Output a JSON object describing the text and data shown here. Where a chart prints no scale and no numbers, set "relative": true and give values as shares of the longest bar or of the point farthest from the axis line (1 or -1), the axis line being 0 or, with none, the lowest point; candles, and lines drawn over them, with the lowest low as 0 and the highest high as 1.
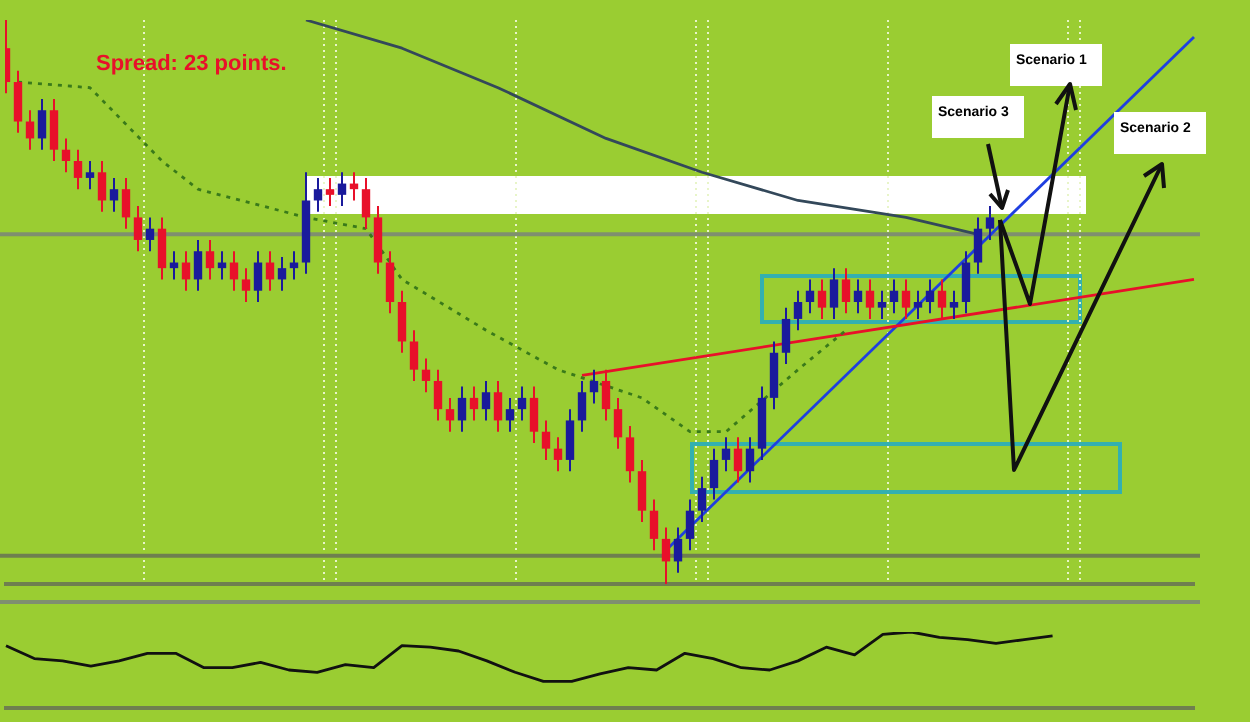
{
  "chart_data": [
    {
      "type": "candlestick",
      "relative": true,
      "grid": "x",
      "categories": [
        null,
        null,
        null,
        null,
        null,
        null,
        null,
        null,
        null,
        null,
        null,
        null,
        null,
        null,
        null,
        null,
        null,
        null,
        null,
        null,
        null,
        null,
        null,
        null,
        null,
        null,
        null,
        null,
        null,
        null,
        null,
        null,
        null,
        null,
        null,
        null,
        null,
        null,
        null,
        null,
        null,
        null,
        null,
        null,
        null,
        null,
        null,
        null,
        null,
        null,
        null,
        null,
        null,
        null,
        null,
        null,
        null,
        null,
        null,
        null,
        null,
        null,
        null,
        null,
        null,
        null,
        null,
        null,
        null,
        null,
        null,
        null,
        null,
        null,
        null,
        null,
        null,
        null,
        null,
        null,
        null,
        null,
        null,
        null,
        null,
        null,
        null,
        null,
        null,
        null,
        null,
        null,
        null,
        null,
        null,
        null,
        null,
        null,
        null,
        null
      ],
      "ohlc": [
        [
          0.95,
          1,
          0.87,
          0.89
        ],
        [
          0.89,
          0.91,
          0.8,
          0.82
        ],
        [
          0.82,
          0.84,
          0.77,
          0.79
        ],
        [
          0.79,
          0.86,
          0.77,
          0.84
        ],
        [
          0.84,
          0.86,
          0.75,
          0.77
        ],
        [
          0.77,
          0.79,
          0.73,
          0.75
        ],
        [
          0.75,
          0.77,
          0.7,
          0.72
        ],
        [
          0.72,
          0.75,
          0.7,
          0.73
        ],
        [
          0.73,
          0.75,
          0.66,
          0.68
        ],
        [
          0.68,
          0.72,
          0.66,
          0.7
        ],
        [
          0.7,
          0.72,
          0.63,
          0.65
        ],
        [
          0.65,
          0.67,
          0.59,
          0.61
        ],
        [
          0.61,
          0.65,
          0.59,
          0.63
        ],
        [
          0.63,
          0.65,
          0.54,
          0.56
        ],
        [
          0.56,
          0.59,
          0.54,
          0.57
        ],
        [
          0.57,
          0.59,
          0.52,
          0.54
        ],
        [
          0.54,
          0.61,
          0.52,
          0.59
        ],
        [
          0.59,
          0.61,
          0.54,
          0.56
        ],
        [
          0.56,
          0.59,
          0.54,
          0.57
        ],
        [
          0.57,
          0.59,
          0.52,
          0.54
        ],
        [
          0.54,
          0.56,
          0.5,
          0.52
        ],
        [
          0.52,
          0.59,
          0.5,
          0.57
        ],
        [
          0.57,
          0.59,
          0.52,
          0.54
        ],
        [
          0.54,
          0.58,
          0.52,
          0.56
        ],
        [
          0.56,
          0.59,
          0.54,
          0.57
        ],
        [
          0.57,
          0.73,
          0.55,
          0.68
        ],
        [
          0.68,
          0.72,
          0.66,
          0.7
        ],
        [
          0.7,
          0.72,
          0.67,
          0.69
        ],
        [
          0.69,
          0.73,
          0.67,
          0.71
        ],
        [
          0.71,
          0.73,
          0.68,
          0.7
        ],
        [
          0.7,
          0.72,
          0.63,
          0.65
        ],
        [
          0.65,
          0.67,
          0.55,
          0.57
        ],
        [
          0.57,
          0.59,
          0.48,
          0.5
        ],
        [
          0.5,
          0.52,
          0.41,
          0.43
        ],
        [
          0.43,
          0.45,
          0.36,
          0.38
        ],
        [
          0.38,
          0.4,
          0.34,
          0.36
        ],
        [
          0.36,
          0.38,
          0.29,
          0.31
        ],
        [
          0.31,
          0.33,
          0.27,
          0.29
        ],
        [
          0.29,
          0.35,
          0.27,
          0.33
        ],
        [
          0.33,
          0.35,
          0.29,
          0.31
        ],
        [
          0.31,
          0.36,
          0.29,
          0.34
        ],
        [
          0.34,
          0.36,
          0.27,
          0.29
        ],
        [
          0.29,
          0.33,
          0.27,
          0.31
        ],
        [
          0.31,
          0.35,
          0.29,
          0.33
        ],
        [
          0.33,
          0.35,
          0.25,
          0.27
        ],
        [
          0.27,
          0.29,
          0.22,
          0.24
        ],
        [
          0.24,
          0.26,
          0.2,
          0.22
        ],
        [
          0.22,
          0.31,
          0.2,
          0.29
        ],
        [
          0.29,
          0.36,
          0.27,
          0.34
        ],
        [
          0.34,
          0.38,
          0.32,
          0.36
        ],
        [
          0.36,
          0.38,
          0.29,
          0.31
        ],
        [
          0.31,
          0.33,
          0.24,
          0.26
        ],
        [
          0.26,
          0.28,
          0.18,
          0.2
        ],
        [
          0.2,
          0.22,
          0.11,
          0.13
        ],
        [
          0.13,
          0.15,
          0.06,
          0.08
        ],
        [
          0.08,
          0.1,
          0,
          0.04
        ],
        [
          0.04,
          0.1,
          0.02,
          0.08
        ],
        [
          0.08,
          0.15,
          0.06,
          0.13
        ],
        [
          0.13,
          0.19,
          0.11,
          0.17
        ],
        [
          0.17,
          0.24,
          0.15,
          0.22
        ],
        [
          0.22,
          0.26,
          0.2,
          0.24
        ],
        [
          0.24,
          0.26,
          0.18,
          0.2
        ],
        [
          0.2,
          0.26,
          0.18,
          0.24
        ],
        [
          0.24,
          0.35,
          0.22,
          0.33
        ],
        [
          0.33,
          0.43,
          0.31,
          0.41
        ],
        [
          0.41,
          0.49,
          0.39,
          0.47
        ],
        [
          0.47,
          0.52,
          0.45,
          0.5
        ],
        [
          0.5,
          0.54,
          0.48,
          0.52
        ],
        [
          0.52,
          0.54,
          0.47,
          0.49
        ],
        [
          0.49,
          0.56,
          0.47,
          0.54
        ],
        [
          0.54,
          0.56,
          0.48,
          0.5
        ],
        [
          0.5,
          0.54,
          0.48,
          0.52
        ],
        [
          0.52,
          0.54,
          0.47,
          0.49
        ],
        [
          0.49,
          0.52,
          0.47,
          0.5
        ],
        [
          0.5,
          0.54,
          0.48,
          0.52
        ],
        [
          0.52,
          0.54,
          0.47,
          0.49
        ],
        [
          0.49,
          0.52,
          0.47,
          0.5
        ],
        [
          0.5,
          0.54,
          0.48,
          0.52
        ],
        [
          0.52,
          0.54,
          0.47,
          0.49
        ],
        [
          0.49,
          0.52,
          0.47,
          0.5
        ],
        [
          0.5,
          0.59,
          0.48,
          0.57
        ],
        [
          0.57,
          0.65,
          0.55,
          0.63
        ],
        [
          0.63,
          0.67,
          0.61,
          0.65
        ],
        null,
        null,
        null,
        null,
        null,
        null,
        null,
        null,
        null,
        null,
        null,
        null,
        null,
        null,
        null,
        null,
        null
      ],
      "colors": [
        "#e8102a",
        "#e8102a",
        "#e8102a",
        "#1a1a9c",
        "#e8102a",
        "#e8102a",
        "#e8102a",
        "#1a1a9c",
        "#e8102a",
        "#1a1a9c",
        "#e8102a",
        "#e8102a",
        "#1a1a9c",
        "#e8102a",
        "#1a1a9c",
        "#e8102a",
        "#1a1a9c",
        "#e8102a",
        "#1a1a9c",
        "#e8102a",
        "#e8102a",
        "#1a1a9c",
        "#e8102a",
        "#1a1a9c",
        "#1a1a9c",
        "#1a1a9c",
        "#1a1a9c",
        "#e8102a",
        "#1a1a9c",
        "#e8102a",
        "#e8102a",
        "#e8102a",
        "#e8102a",
        "#e8102a",
        "#e8102a",
        "#e8102a",
        "#e8102a",
        "#e8102a",
        "#1a1a9c",
        "#e8102a",
        "#1a1a9c",
        "#e8102a",
        "#1a1a9c",
        "#1a1a9c",
        "#e8102a",
        "#e8102a",
        "#e8102a",
        "#1a1a9c",
        "#1a1a9c",
        "#1a1a9c",
        "#e8102a",
        "#e8102a",
        "#e8102a",
        "#e8102a",
        "#e8102a",
        "#e8102a",
        "#1a1a9c",
        "#1a1a9c",
        "#1a1a9c",
        "#1a1a9c",
        "#1a1a9c",
        "#e8102a",
        "#1a1a9c",
        "#1a1a9c",
        "#1a1a9c",
        "#1a1a9c",
        "#1a1a9c",
        "#1a1a9c",
        "#e8102a",
        "#1a1a9c",
        "#e8102a",
        "#1a1a9c",
        "#e8102a",
        "#1a1a9c",
        "#1a1a9c",
        "#e8102a",
        "#1a1a9c",
        "#1a1a9c",
        "#e8102a",
        "#1a1a9c",
        "#1a1a9c",
        "#1a1a9c",
        "#1a1a9c",
        null,
        null,
        null,
        null,
        null,
        null,
        null,
        null,
        null,
        null,
        null,
        null,
        null,
        null,
        null,
        null,
        null
      ],
      "series": [
        {
          "type": "line",
          "color": "#33485a",
          "values": [
            null,
            null,
            null,
            null,
            null,
            null,
            null,
            null,
            null,
            null,
            null,
            null,
            null,
            null,
            null,
            null,
            null,
            null,
            null,
            null,
            null,
            null,
            null,
            null,
            null,
            1,
            null,
            null,
            null,
            null,
            null,
            null,
            null,
            0.95,
            null,
            null,
            null,
            null,
            null,
            null,
            null,
            0.88,
            null,
            null,
            null,
            null,
            null,
            null,
            null,
            null,
            0.79,
            null,
            null,
            null,
            null,
            null,
            null,
            null,
            0.73,
            null,
            null,
            null,
            null,
            null,
            null,
            null,
            0.68,
            null,
            null,
            null,
            null,
            null,
            null,
            null,
            null,
            0.65,
            null,
            null,
            null,
            null,
            null,
            0.62,
            null,
            null,
            null,
            null,
            null,
            null,
            null,
            null,
            null,
            null,
            null,
            null,
            null,
            null,
            null,
            null,
            null,
            null
          ]
        },
        {
          "type": "line",
          "color": "#3a7a1a",
          "line_style": "dotted",
          "values": [
            null,
            0.89,
            null,
            null,
            null,
            null,
            null,
            0.88,
            null,
            null,
            null,
            null,
            null,
            0.75,
            null,
            null,
            0.7,
            null,
            null,
            null,
            null,
            null,
            null,
            null,
            null,
            0.65,
            null,
            null,
            null,
            null,
            0.63,
            null,
            null,
            0.54,
            null,
            null,
            null,
            null,
            null,
            null,
            0.45,
            null,
            null,
            null,
            null,
            null,
            0.38,
            null,
            null,
            null,
            null,
            null,
            null,
            0.33,
            null,
            null,
            null,
            0.27,
            null,
            null,
            0.27,
            null,
            null,
            null,
            null,
            null,
            0.38,
            null,
            null,
            null,
            0.45,
            null,
            null,
            null,
            null,
            null,
            null,
            null,
            null,
            null,
            null,
            null,
            null,
            null,
            null,
            null,
            null,
            null,
            null,
            null,
            null,
            null,
            null,
            null,
            null,
            null,
            null,
            null,
            null,
            null
          ]
        },
        {
          "type": "line",
          "color": "#e8102a",
          "values": [
            null,
            null,
            null,
            null,
            null,
            null,
            null,
            null,
            null,
            null,
            null,
            null,
            null,
            null,
            null,
            null,
            null,
            null,
            null,
            null,
            null,
            null,
            null,
            null,
            null,
            null,
            null,
            null,
            null,
            null,
            null,
            null,
            null,
            null,
            null,
            null,
            null,
            null,
            null,
            null,
            null,
            null,
            null,
            null,
            null,
            null,
            null,
            null,
            0.37,
            null,
            null,
            null,
            null,
            null,
            null,
            null,
            null,
            null,
            null,
            null,
            null,
            null,
            null,
            null,
            null,
            null,
            null,
            null,
            null,
            null,
            null,
            null,
            null,
            null,
            null,
            null,
            null,
            null,
            null,
            null,
            null,
            null,
            null,
            null,
            null,
            null,
            null,
            null,
            null,
            null,
            null,
            null,
            null,
            null,
            null,
            null,
            null,
            null,
            null,
            0.54
          ]
        },
        {
          "type": "line",
          "color": "#1f3fe0",
          "values": [
            null,
            null,
            null,
            null,
            null,
            null,
            null,
            null,
            null,
            null,
            null,
            null,
            null,
            null,
            null,
            null,
            null,
            null,
            null,
            null,
            null,
            null,
            null,
            null,
            null,
            null,
            null,
            null,
            null,
            null,
            null,
            null,
            null,
            null,
            null,
            null,
            null,
            null,
            null,
            null,
            null,
            null,
            null,
            null,
            null,
            null,
            null,
            null,
            null,
            null,
            null,
            null,
            null,
            null,
            null,
            0.06,
            null,
            null,
            null,
            null,
            null,
            null,
            null,
            null,
            null,
            null,
            null,
            null,
            null,
            null,
            null,
            null,
            null,
            null,
            null,
            null,
            null,
            null,
            null,
            null,
            null,
            null,
            null,
            null,
            null,
            null,
            null,
            null,
            null,
            null,
            null,
            null,
            null,
            null,
            null,
            null,
            null,
            null,
            null,
            0.97
          ]
        }
      ],
      "ref_lines": [
        {
          "axis": "y",
          "value": 0.62,
          "color": "#7f8f6f"
        },
        {
          "axis": "y",
          "value": 0.05,
          "color": "#6f7f4f"
        }
      ],
      "annotations": [
        "Spread: 23 points.",
        "Scenario 1",
        "Scenario 2",
        "Scenario 3"
      ]
    },
    {
      "type": "line",
      "relative": true,
      "categories": [
        null,
        null,
        null,
        null,
        null,
        null,
        null,
        null,
        null,
        null,
        null,
        null,
        null,
        null,
        null,
        null,
        null,
        null,
        null,
        null,
        null,
        null,
        null,
        null,
        null,
        null,
        null,
        null,
        null,
        null,
        null,
        null,
        null,
        null,
        null,
        null,
        null,
        null,
        null,
        null,
        null,
        null,
        null
      ],
      "series": [
        {
          "color": "#111111",
          "values": [
            0.82,
            0.65,
            0.62,
            0.55,
            0.62,
            0.72,
            0.72,
            0.53,
            0.53,
            0.6,
            0.5,
            0.47,
            0.57,
            0.53,
            0.82,
            0.8,
            0.75,
            0.62,
            0.47,
            0.35,
            0.35,
            0.45,
            0.53,
            0.5,
            0.72,
            0.65,
            0.53,
            0.5,
            0.62,
            0.8,
            0.7,
            0.97,
            1,
            0.93,
            0.9,
            0.85,
            0.9,
            0.95,
            null,
            null,
            null,
            null,
            null
          ]
        }
      ]
    }
  ]
}
